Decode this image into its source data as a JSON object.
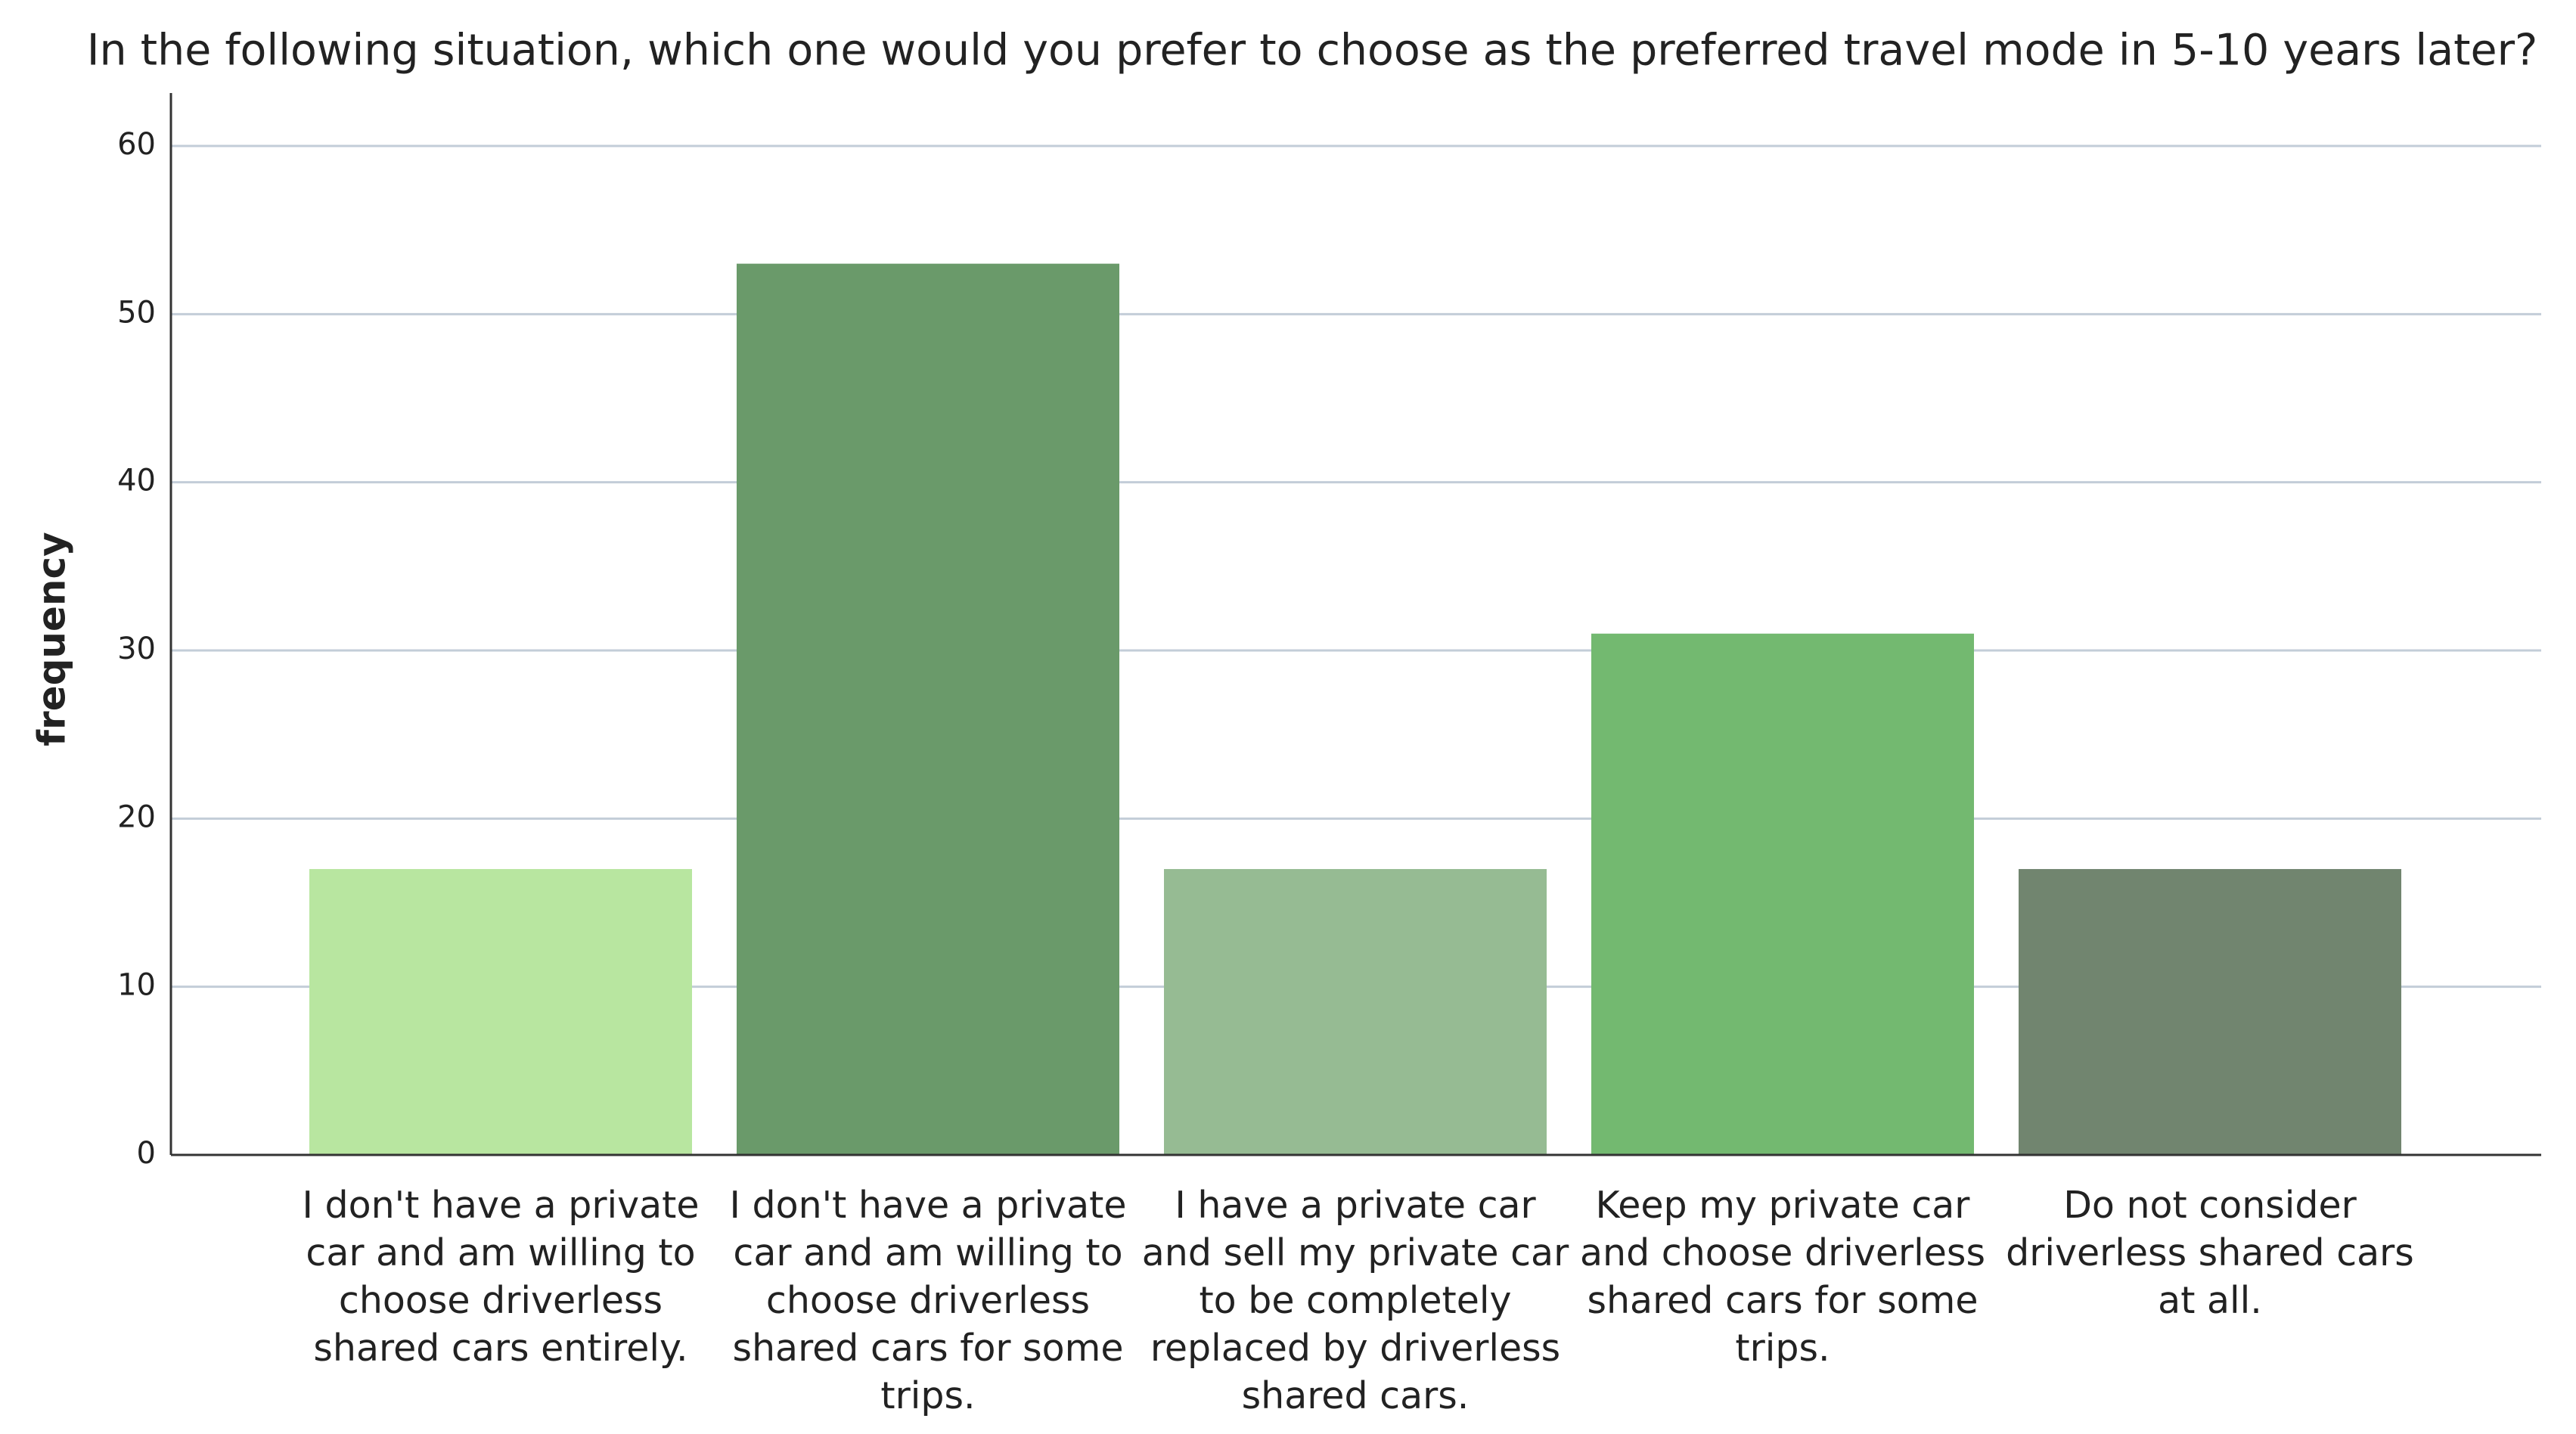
{
  "chart_data": {
    "type": "bar",
    "title": "In the following situation, which one would you prefer to choose as the preferred travel mode in 5-10 years later?",
    "y_label": "frequency",
    "categories": [
      "I don't have a private car and am willing to choose driverless shared cars entirely.",
      "I don't have a private car and am willing to choose driverless shared cars for some trips.",
      "I have a private car and sell my private car to be completely replaced by driverless shared cars.",
      "Keep my private car and choose driverless shared cars for some trips.",
      "Do not consider driverless shared cars at all."
    ],
    "values": [
      17,
      53,
      17,
      31,
      17
    ],
    "colors": [
      "#b8e6a0",
      "#6a9a6a",
      "#96bb93",
      "#73b970",
      "#71856f"
    ],
    "ylim": [
      0,
      60
    ],
    "yticks": [
      0,
      10,
      20,
      30,
      40,
      50,
      60
    ],
    "grid": true
  }
}
